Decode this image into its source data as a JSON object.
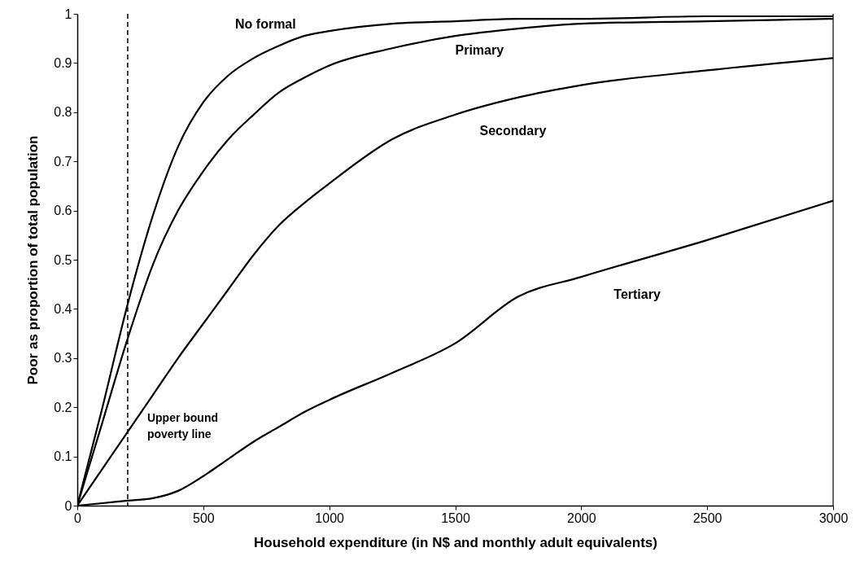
{
  "chart_data": {
    "type": "line",
    "xlabel": "Household expenditure (in N$ and monthly adult equivalents)",
    "ylabel": "Poor as proportion of total population",
    "x": [
      0,
      100,
      200,
      300,
      400,
      500,
      600,
      700,
      800,
      900,
      1000,
      1250,
      1500,
      1750,
      2000,
      2500,
      3000
    ],
    "series": [
      {
        "name": "No formal",
        "color": "#000000",
        "values": [
          0,
          0.2,
          0.41,
          0.59,
          0.73,
          0.82,
          0.875,
          0.91,
          0.935,
          0.955,
          0.965,
          0.98,
          0.985,
          0.99,
          0.99,
          0.995,
          0.995
        ]
      },
      {
        "name": "Primary",
        "color": "#000000",
        "values": [
          0,
          0.17,
          0.34,
          0.49,
          0.6,
          0.68,
          0.745,
          0.795,
          0.84,
          0.87,
          0.895,
          0.93,
          0.955,
          0.97,
          0.98,
          0.985,
          0.99
        ]
      },
      {
        "name": "Secondary",
        "color": "#000000",
        "values": [
          0,
          0.075,
          0.15,
          0.225,
          0.3,
          0.37,
          0.44,
          0.51,
          0.57,
          0.615,
          0.655,
          0.745,
          0.795,
          0.83,
          0.855,
          0.885,
          0.91
        ]
      },
      {
        "name": "Tertiary",
        "color": "#000000",
        "values": [
          0,
          0.005,
          0.01,
          0.015,
          0.03,
          0.06,
          0.095,
          0.13,
          0.16,
          0.19,
          0.215,
          0.27,
          0.33,
          0.425,
          0.465,
          0.54,
          0.62
        ]
      }
    ],
    "xlim": [
      0,
      3000
    ],
    "xticks": [
      0,
      500,
      1000,
      1500,
      2000,
      2500,
      3000
    ],
    "ylim": [
      0,
      1
    ],
    "yticks": [
      0,
      0.1,
      0.2,
      0.3,
      0.4,
      0.5,
      0.6,
      0.7,
      0.8,
      0.9,
      1
    ],
    "ref_lines": [
      {
        "axis": "x",
        "value": 200,
        "label": "Upper bound\npoverty line",
        "line_style": "dashed",
        "color": "#000000"
      }
    ],
    "grid": false,
    "legend": false,
    "marker": "none",
    "line_style": "solid"
  }
}
